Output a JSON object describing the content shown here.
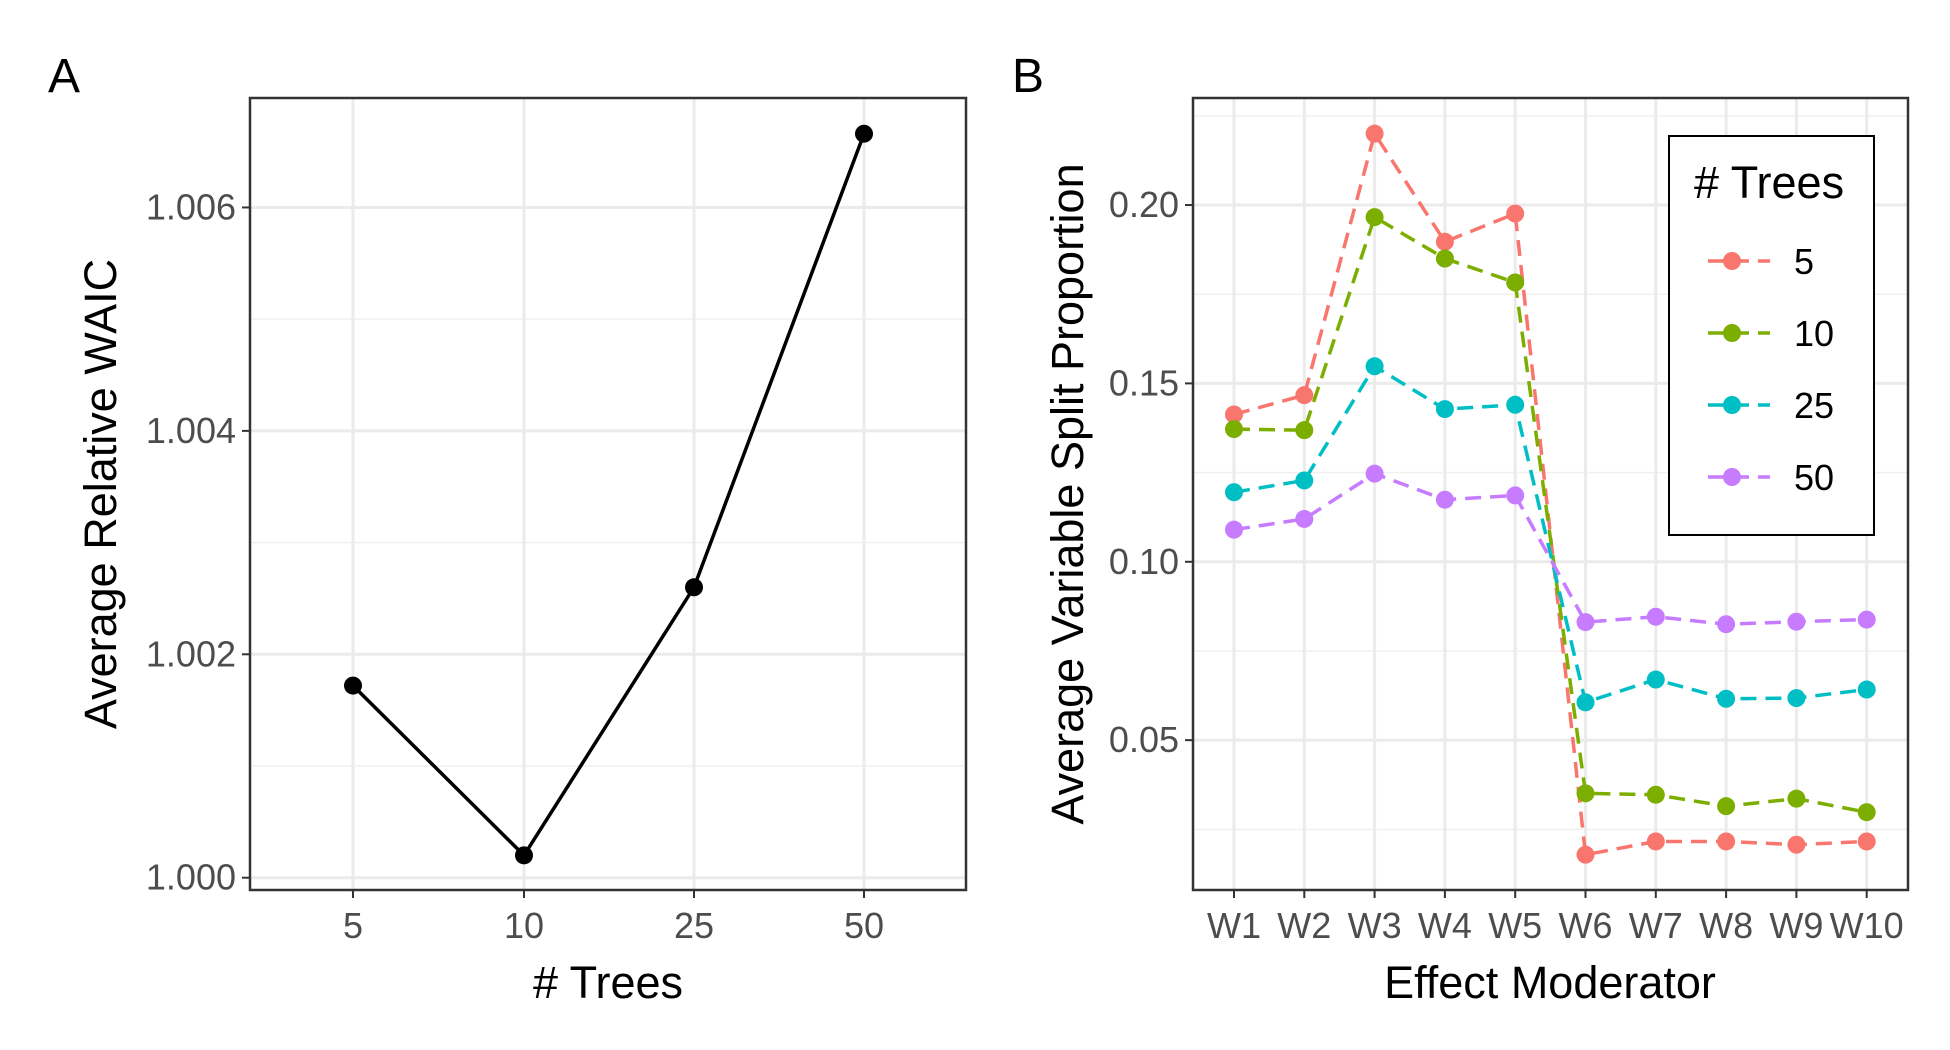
{
  "chart_data": [
    {
      "panel_label": "A",
      "type": "line",
      "xlabel": "# Trees",
      "ylabel": "Average Relative WAIC",
      "categories": [
        "5",
        "10",
        "25",
        "50"
      ],
      "values": [
        1.00172,
        1.0002,
        1.0026,
        1.00666
      ],
      "yticks": [
        1.0,
        1.002,
        1.004,
        1.006
      ],
      "ytick_labels": [
        "1.000",
        "1.002",
        "1.004",
        "1.006"
      ],
      "ylim": [
        0.99989,
        1.00698
      ],
      "grid": true,
      "color": "#000000"
    },
    {
      "panel_label": "B",
      "type": "line",
      "xlabel": "Effect Moderator",
      "ylabel": "Average Variable Split Proportion",
      "categories": [
        "W1",
        "W2",
        "W3",
        "W4",
        "W5",
        "W6",
        "W7",
        "W8",
        "W9",
        "W10"
      ],
      "yticks": [
        0.05,
        0.1,
        0.15,
        0.2
      ],
      "ytick_labels": [
        "0.05",
        "0.10",
        "0.15",
        "0.20"
      ],
      "ylim": [
        0.008,
        0.23
      ],
      "grid": true,
      "line_style": "dashed",
      "legend": {
        "title": "# Trees",
        "placement": "top-right"
      },
      "series": [
        {
          "name": "5",
          "color": "#F8766D",
          "values": [
            0.1413,
            0.1467,
            0.22,
            0.1897,
            0.1976,
            0.0179,
            0.0216,
            0.0216,
            0.0207,
            0.0216
          ]
        },
        {
          "name": "10",
          "color": "#7CAE00",
          "values": [
            0.1372,
            0.1369,
            0.1966,
            0.185,
            0.1783,
            0.0351,
            0.0347,
            0.0315,
            0.0336,
            0.0298
          ]
        },
        {
          "name": "25",
          "color": "#00BFC4",
          "values": [
            0.1195,
            0.1228,
            0.1548,
            0.1428,
            0.144,
            0.0606,
            0.067,
            0.0616,
            0.0618,
            0.0642
          ]
        },
        {
          "name": "50",
          "color": "#C77CFF",
          "values": [
            0.109,
            0.112,
            0.1247,
            0.1174,
            0.1186,
            0.0831,
            0.0846,
            0.0825,
            0.0832,
            0.0838
          ]
        }
      ]
    }
  ]
}
